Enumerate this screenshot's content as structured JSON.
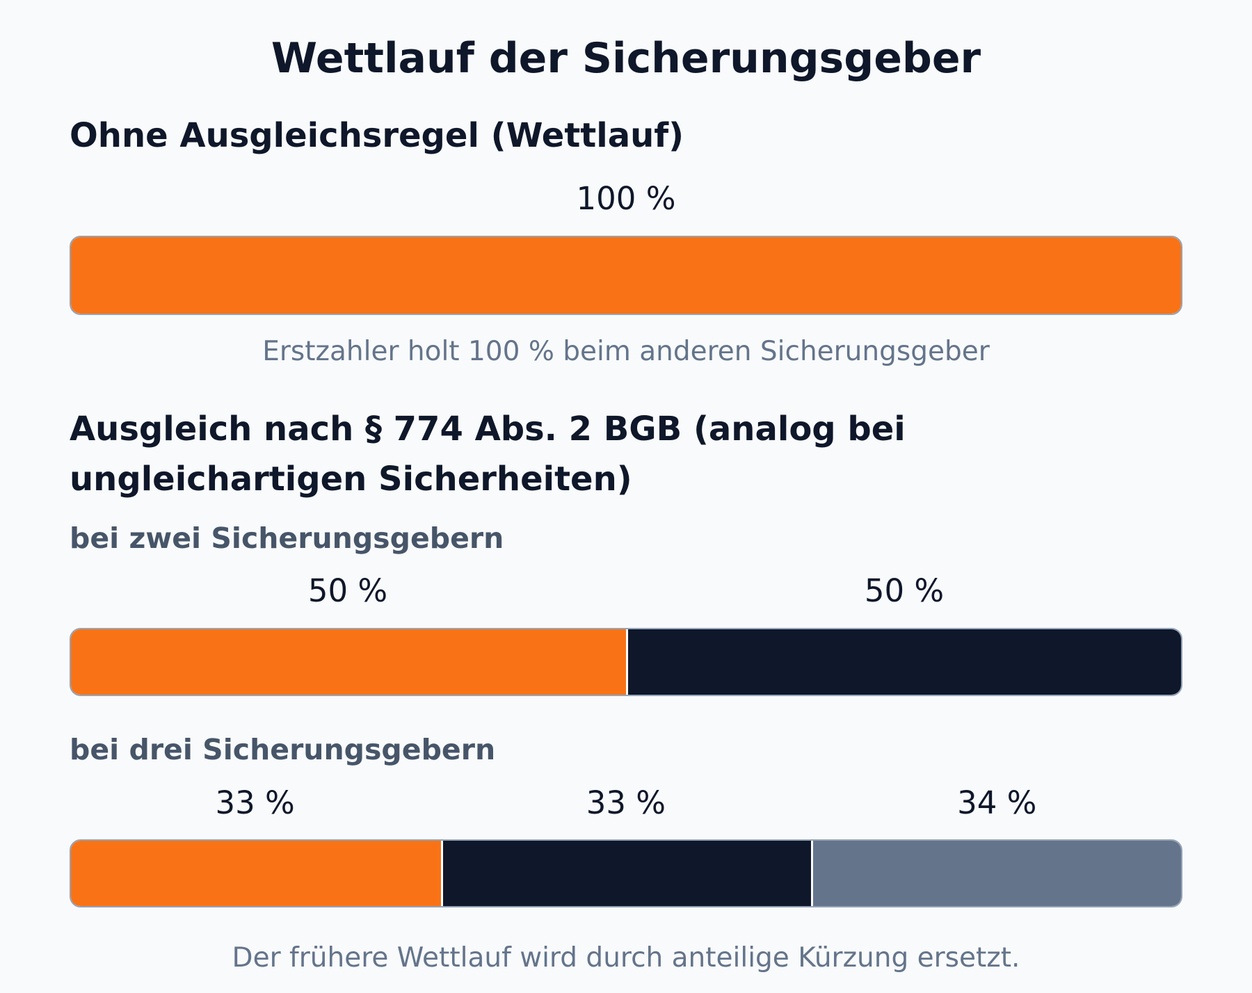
{
  "title": "Wettlauf der Sicherungsgeber",
  "section1": {
    "heading": "Ohne Ausgleichsregel (Wettlauf)",
    "caption": "Erstzahler holt 100 % beim anderen Sicherungsgeber"
  },
  "section2": {
    "heading_line1": "Ausgleich nach § 774 Abs. 2 BGB (analog bei",
    "heading_line2": "ungleichartigen Sicherheiten)",
    "sub_two": "bei zwei Sicherungsgebern",
    "sub_three": "bei drei Sicherungsgebern"
  },
  "footer": "Der frühere Wettlauf wird durch anteilige Kürzung ersetzt.",
  "colors": {
    "orange": "#f97316",
    "navy": "#0f172a",
    "slate": "#64748b"
  },
  "chart_data": [
    {
      "type": "bar",
      "orientation": "horizontal-stacked",
      "scale_max": 100,
      "segments": [
        {
          "value": 100,
          "label": "100 %",
          "color": "#f97316"
        }
      ]
    },
    {
      "type": "bar",
      "orientation": "horizontal-stacked",
      "scale_max": 100,
      "segments": [
        {
          "value": 50,
          "label": "50 %",
          "color": "#f97316"
        },
        {
          "value": 50,
          "label": "50 %",
          "color": "#0f172a"
        }
      ]
    },
    {
      "type": "bar",
      "orientation": "horizontal-stacked",
      "scale_max": 100,
      "segments": [
        {
          "value": 33.33,
          "label": "33 %",
          "color": "#f97316"
        },
        {
          "value": 33.33,
          "label": "33 %",
          "color": "#0f172a"
        },
        {
          "value": 33.34,
          "label": "34 %",
          "color": "#64748b"
        }
      ]
    }
  ]
}
